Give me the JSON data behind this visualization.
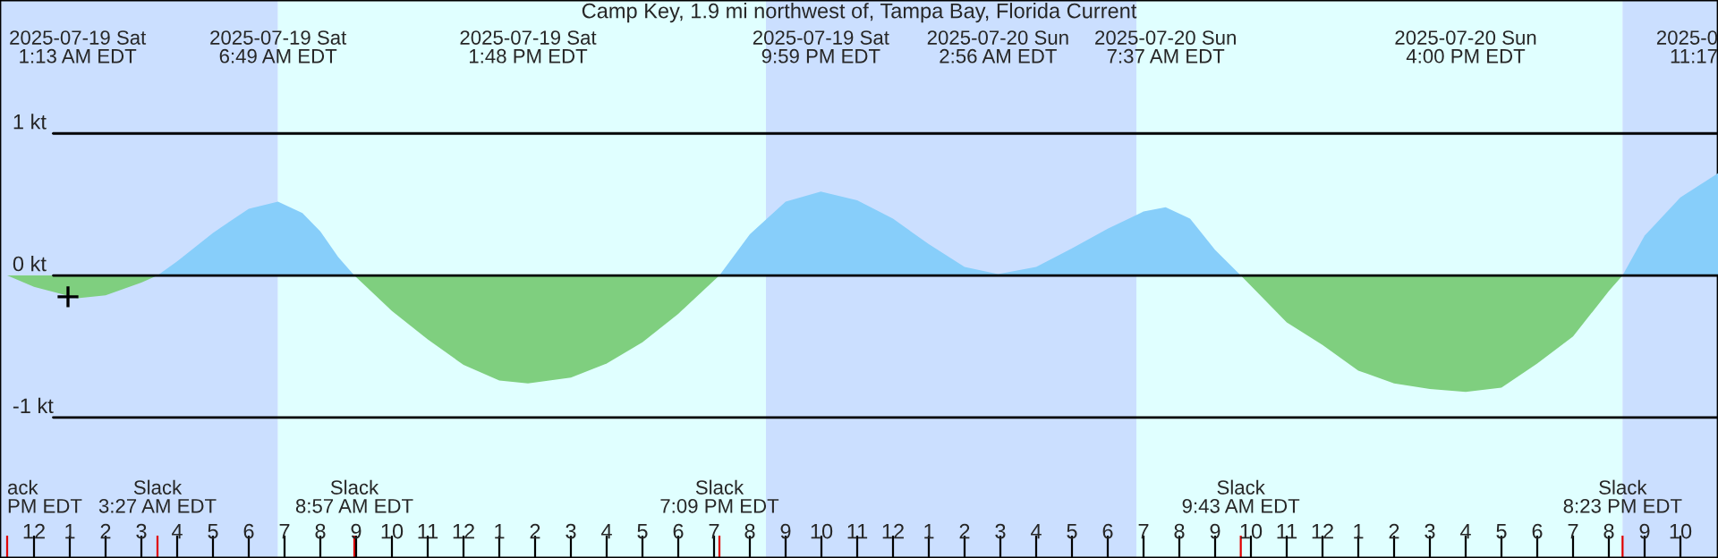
{
  "chart_data": {
    "type": "area",
    "title": "Camp Key, 1.9 mi northwest of, Tampa Bay, Florida Current",
    "x": [
      "2025-07-18T23:15",
      "2025-07-19T00:00",
      "2025-07-19T01:13",
      "2025-07-19T02:00",
      "2025-07-19T03:00",
      "2025-07-19T03:27",
      "2025-07-19T04:00",
      "2025-07-19T05:00",
      "2025-07-19T06:00",
      "2025-07-19T06:49",
      "2025-07-19T07:30",
      "2025-07-19T08:00",
      "2025-07-19T08:30",
      "2025-07-19T08:57",
      "2025-07-19T10:00",
      "2025-07-19T11:00",
      "2025-07-19T12:00",
      "2025-07-19T13:00",
      "2025-07-19T13:48",
      "2025-07-19T15:00",
      "2025-07-19T16:00",
      "2025-07-19T17:00",
      "2025-07-19T18:00",
      "2025-07-19T19:09",
      "2025-07-19T20:00",
      "2025-07-19T21:00",
      "2025-07-19T21:59",
      "2025-07-19T23:00",
      "2025-07-20T00:00",
      "2025-07-20T01:00",
      "2025-07-20T02:00",
      "2025-07-20T02:56",
      "2025-07-20T04:00",
      "2025-07-20T05:00",
      "2025-07-20T06:00",
      "2025-07-20T07:00",
      "2025-07-20T07:37",
      "2025-07-20T08:18",
      "2025-07-20T09:00",
      "2025-07-20T09:43",
      "2025-07-20T11:00",
      "2025-07-20T12:00",
      "2025-07-20T13:00",
      "2025-07-20T14:00",
      "2025-07-20T15:00",
      "2025-07-20T16:00",
      "2025-07-20T17:00",
      "2025-07-20T18:00",
      "2025-07-20T19:00",
      "2025-07-20T20:00",
      "2025-07-20T20:23",
      "2025-07-20T21:00",
      "2025-07-20T22:00",
      "2025-07-20T23:03"
    ],
    "series": [
      {
        "color": "#87cefa",
        "values": [
          null,
          null,
          null,
          null,
          null,
          0,
          0.1,
          0.3,
          0.47,
          0.52,
          0.44,
          0.31,
          0.13,
          0,
          null,
          null,
          null,
          null,
          null,
          null,
          null,
          null,
          null,
          0,
          0.29,
          0.52,
          0.59,
          0.53,
          0.4,
          0.22,
          0.06,
          0.01,
          0.06,
          0.19,
          0.33,
          0.45,
          0.48,
          0.4,
          0.18,
          0,
          null,
          null,
          null,
          null,
          null,
          null,
          null,
          null,
          null,
          null,
          0,
          0.28,
          0.55,
          0.72
        ]
      },
      {
        "color": "#7fcf7f",
        "values": [
          0,
          -0.08,
          -0.16,
          -0.14,
          -0.05,
          0,
          null,
          null,
          null,
          null,
          null,
          null,
          null,
          0,
          -0.25,
          -0.45,
          -0.63,
          -0.74,
          -0.76,
          -0.72,
          -0.62,
          -0.47,
          -0.27,
          0,
          null,
          null,
          null,
          null,
          null,
          null,
          null,
          null,
          null,
          null,
          null,
          null,
          null,
          null,
          null,
          0,
          -0.33,
          -0.49,
          -0.67,
          -0.76,
          -0.8,
          -0.82,
          -0.79,
          -0.62,
          -0.43,
          -0.11,
          0,
          null,
          null,
          null
        ]
      },
      {
        "type": "scatter",
        "color": "#000000",
        "marker": "cross",
        "x": [
          "2025-07-19T00:57"
        ],
        "values": [
          -0.15
        ]
      }
    ],
    "xlim": [
      "2025-07-18T23:03",
      "2025-07-20T23:03"
    ],
    "x2lim": [
      "2025-07-18T23:03",
      "2025-07-20T23:03"
    ],
    "x2ticks": [
      {
        "value": "2025-07-19T01:13",
        "label": "2025-07-19 Sat\n1:13 AM EDT"
      },
      {
        "value": "2025-07-19T06:49",
        "label": "2025-07-19 Sat\n6:49 AM EDT"
      },
      {
        "value": "2025-07-19T13:48",
        "label": "2025-07-19 Sat\n1:48 PM EDT"
      },
      {
        "value": "2025-07-19T21:59",
        "label": "2025-07-19 Sat\n9:59 PM EDT"
      },
      {
        "value": "2025-07-20T02:56",
        "label": "2025-07-20 Sun\n2:56 AM EDT"
      },
      {
        "value": "2025-07-20T07:37",
        "label": "2025-07-20 Sun\n7:37 AM EDT"
      },
      {
        "value": "2025-07-20T16:00",
        "label": "2025-07-20 Sun\n4:00 PM EDT"
      },
      {
        "value": "2025-07-20T23:03",
        "label": "2025-0\n11:17"
      }
    ],
    "annotations": [
      "ack\nPM EDT",
      "Slack\n3:27 AM EDT",
      "Slack\n8:57 AM EDT",
      "Slack\n7:09 PM EDT",
      "Slack\n9:43 AM EDT",
      "Slack\n8:23 PM EDT"
    ],
    "xticks": [
      {
        "value": "2025-07-18T23:15",
        "label": null
      },
      {
        "value": "2025-07-19T03:27",
        "label": null
      },
      {
        "value": "2025-07-19T08:57",
        "label": null
      },
      {
        "value": "2025-07-19T19:09",
        "label": null
      },
      {
        "value": "2025-07-20T09:43",
        "label": null
      },
      {
        "value": "2025-07-20T20:23",
        "label": null
      },
      {
        "value": "2025-07-19T00:00",
        "label": "12"
      },
      {
        "value": "2025-07-19T01:00",
        "label": "1"
      },
      {
        "value": "2025-07-19T02:00",
        "label": "2"
      },
      {
        "value": "2025-07-19T03:00",
        "label": "3"
      },
      {
        "value": "2025-07-19T04:00",
        "label": "4"
      },
      {
        "value": "2025-07-19T05:00",
        "label": "5"
      },
      {
        "value": "2025-07-19T06:00",
        "label": "6"
      },
      {
        "value": "2025-07-19T07:00",
        "label": "7"
      },
      {
        "value": "2025-07-19T08:00",
        "label": "8"
      },
      {
        "value": "2025-07-19T09:00",
        "label": "9"
      },
      {
        "value": "2025-07-19T10:00",
        "label": "10"
      },
      {
        "value": "2025-07-19T11:00",
        "label": "11"
      },
      {
        "value": "2025-07-19T12:00",
        "label": "12"
      },
      {
        "value": "2025-07-19T13:00",
        "label": "1"
      },
      {
        "value": "2025-07-19T14:00",
        "label": "2"
      },
      {
        "value": "2025-07-19T15:00",
        "label": "3"
      },
      {
        "value": "2025-07-19T16:00",
        "label": "4"
      },
      {
        "value": "2025-07-19T17:00",
        "label": "5"
      },
      {
        "value": "2025-07-19T18:00",
        "label": "6"
      },
      {
        "value": "2025-07-19T19:00",
        "label": "7"
      },
      {
        "value": "2025-07-19T20:00",
        "label": "8"
      },
      {
        "value": "2025-07-19T21:00",
        "label": "9"
      },
      {
        "value": "2025-07-19T22:00",
        "label": "10"
      },
      {
        "value": "2025-07-19T23:00",
        "label": "11"
      },
      {
        "value": "2025-07-20T00:00",
        "label": "12"
      },
      {
        "value": "2025-07-20T01:00",
        "label": "1"
      },
      {
        "value": "2025-07-20T02:00",
        "label": "2"
      },
      {
        "value": "2025-07-20T03:00",
        "label": "3"
      },
      {
        "value": "2025-07-20T04:00",
        "label": "4"
      },
      {
        "value": "2025-07-20T05:00",
        "label": "5"
      },
      {
        "value": "2025-07-20T06:00",
        "label": "6"
      },
      {
        "value": "2025-07-20T07:00",
        "label": "7"
      },
      {
        "value": "2025-07-20T08:00",
        "label": "8"
      },
      {
        "value": "2025-07-20T09:00",
        "label": "9"
      },
      {
        "value": "2025-07-20T10:00",
        "label": "10"
      },
      {
        "value": "2025-07-20T11:00",
        "label": "11"
      },
      {
        "value": "2025-07-20T12:00",
        "label": "12"
      },
      {
        "value": "2025-07-20T13:00",
        "label": "1"
      },
      {
        "value": "2025-07-20T14:00",
        "label": "2"
      },
      {
        "value": "2025-07-20T15:00",
        "label": "3"
      },
      {
        "value": "2025-07-20T16:00",
        "label": "4"
      },
      {
        "value": "2025-07-20T17:00",
        "label": "5"
      },
      {
        "value": "2025-07-20T18:00",
        "label": "6"
      },
      {
        "value": "2025-07-20T19:00",
        "label": "7"
      },
      {
        "value": "2025-07-20T20:00",
        "label": "8"
      },
      {
        "value": "2025-07-20T21:00",
        "label": "9"
      },
      {
        "value": "2025-07-20T22:00",
        "label": "10"
      }
    ],
    "ylim": [
      -1.99,
      1.94
    ],
    "yticks": [
      {
        "value": 1,
        "label": "1 kt"
      },
      {
        "value": 0,
        "label": "0 kt"
      },
      {
        "value": -1,
        "label": "-1 kt"
      }
    ],
    "grid": "y",
    "bands": [
      {
        "axis": "x",
        "from": "2025-07-18T23:03",
        "to": "2025-07-19T06:49",
        "color": "#cbdfff"
      },
      {
        "axis": "x",
        "from": "2025-07-19T06:49",
        "to": "2025-07-19T20:27",
        "color": "#e0ffff"
      },
      {
        "axis": "x",
        "from": "2025-07-19T20:27",
        "to": "2025-07-20T06:48",
        "color": "#cbdfff"
      },
      {
        "axis": "x",
        "from": "2025-07-20T06:48",
        "to": "2025-07-20T20:23",
        "color": "#e0ffff"
      },
      {
        "axis": "x",
        "from": "2025-07-20T20:23",
        "to": "2025-07-20T23:03",
        "color": "#cbdfff"
      }
    ]
  }
}
